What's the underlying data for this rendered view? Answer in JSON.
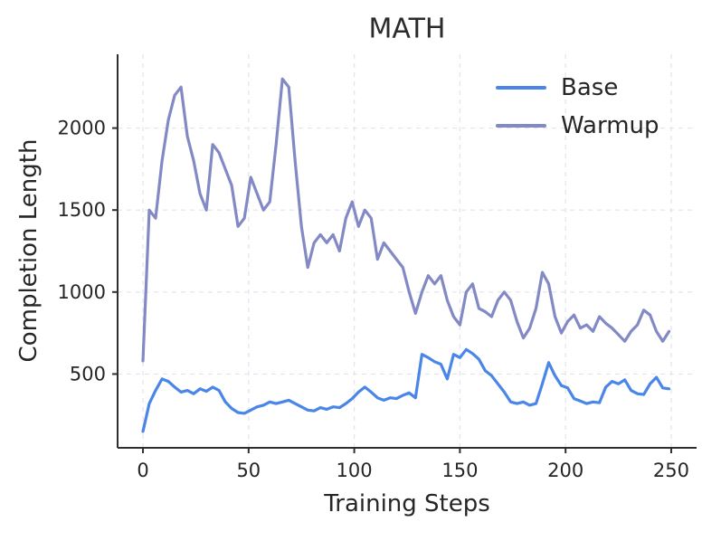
{
  "chart_data": {
    "type": "line",
    "title": "MATH",
    "xlabel": "Training Steps",
    "ylabel": "Completion Length",
    "xlim": [
      -12,
      262
    ],
    "ylim": [
      50,
      2450
    ],
    "x_ticks": [
      0,
      50,
      100,
      150,
      200,
      250
    ],
    "y_ticks": [
      500,
      1000,
      1500,
      2000
    ],
    "grid": "dashed",
    "grid_color": "#e2e3ed",
    "spine_color": "#2f2f2f",
    "legend_position": "upper right",
    "x": [
      0,
      3,
      6,
      9,
      12,
      15,
      18,
      21,
      24,
      27,
      30,
      33,
      36,
      39,
      42,
      45,
      48,
      51,
      54,
      57,
      60,
      63,
      66,
      69,
      72,
      75,
      78,
      81,
      84,
      87,
      90,
      93,
      96,
      99,
      102,
      105,
      108,
      111,
      114,
      117,
      120,
      123,
      126,
      129,
      132,
      135,
      138,
      141,
      144,
      147,
      150,
      153,
      156,
      159,
      162,
      165,
      168,
      171,
      174,
      177,
      180,
      183,
      186,
      189,
      192,
      195,
      198,
      201,
      204,
      207,
      210,
      213,
      216,
      219,
      222,
      225,
      228,
      231,
      234,
      237,
      240,
      243,
      246,
      249
    ],
    "series": [
      {
        "name": "Base",
        "color": "#4a86e8",
        "values": [
          150,
          320,
          400,
          470,
          455,
          420,
          390,
          400,
          380,
          410,
          395,
          420,
          400,
          330,
          290,
          265,
          260,
          280,
          300,
          310,
          330,
          320,
          330,
          340,
          320,
          300,
          280,
          275,
          295,
          285,
          300,
          295,
          320,
          350,
          390,
          420,
          390,
          355,
          340,
          355,
          350,
          370,
          385,
          355,
          620,
          600,
          575,
          560,
          470,
          620,
          600,
          650,
          625,
          590,
          520,
          490,
          440,
          390,
          330,
          320,
          330,
          310,
          320,
          440,
          570,
          490,
          430,
          415,
          350,
          335,
          320,
          330,
          325,
          420,
          455,
          440,
          465,
          400,
          380,
          375,
          440,
          480,
          415,
          410
        ]
      },
      {
        "name": "Warmup",
        "color": "#8289c4",
        "values": [
          580,
          1500,
          1450,
          1800,
          2050,
          2200,
          2250,
          1950,
          1800,
          1600,
          1500,
          1900,
          1850,
          1750,
          1650,
          1400,
          1450,
          1700,
          1600,
          1500,
          1550,
          1900,
          2300,
          2250,
          1800,
          1400,
          1150,
          1300,
          1350,
          1300,
          1350,
          1250,
          1450,
          1550,
          1400,
          1500,
          1450,
          1200,
          1300,
          1250,
          1200,
          1150,
          1000,
          870,
          1000,
          1100,
          1050,
          1100,
          950,
          850,
          800,
          1000,
          1050,
          900,
          880,
          850,
          950,
          1000,
          950,
          820,
          720,
          780,
          900,
          1120,
          1050,
          850,
          750,
          820,
          860,
          780,
          800,
          760,
          850,
          810,
          780,
          740,
          700,
          760,
          800,
          890,
          860,
          760,
          700,
          760
        ]
      }
    ]
  }
}
